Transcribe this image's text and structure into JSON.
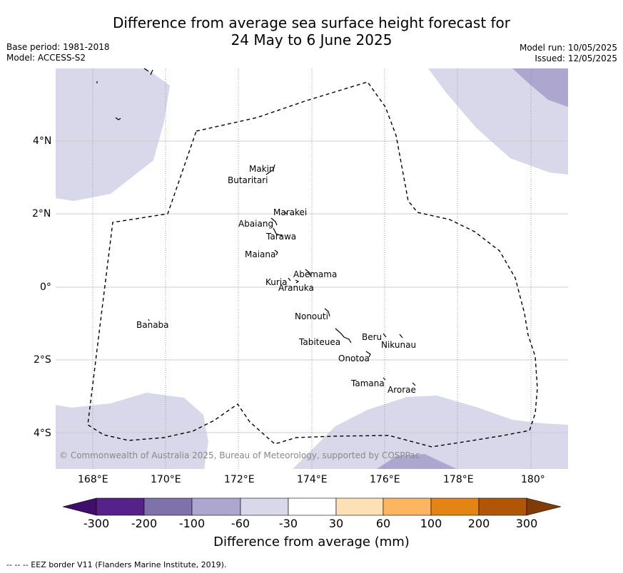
{
  "title_line1": "Difference from average sea surface height forecast for",
  "title_line2": "24 May to 6 June 2025",
  "meta_left": {
    "base_period": "Base period: 1981-2018",
    "model": "Model: ACCESS-S2"
  },
  "meta_right": {
    "model_run": "Model run: 10/05/2025",
    "issued": "Issued: 12/05/2025"
  },
  "x_ticks": [
    "168°E",
    "170°E",
    "172°E",
    "174°E",
    "176°E",
    "178°E",
    "180°"
  ],
  "y_ticks": [
    "4°N",
    "2°N",
    "0°",
    "2°S",
    "4°S"
  ],
  "islands": [
    "Makin",
    "Butaritari",
    "Marakei",
    "Abaiang",
    "Tarawa",
    "Maiana",
    "Abemama",
    "Kuria",
    "Aranuka",
    "Banaba",
    "Nonouti",
    "Beru",
    "Nikunau",
    "Tabiteuea",
    "Onotoa",
    "Tamana",
    "Arorae"
  ],
  "copyright": "© Commonwealth of Australia 2025, Bureau of Meteorology, supported by COSPPac",
  "colorbar": {
    "title": "Difference from average (mm)",
    "ticks": [
      "-300",
      "-200",
      "-100",
      "-60",
      "-30",
      "30",
      "60",
      "100",
      "200",
      "300"
    ],
    "colors": [
      "#3f0f6b",
      "#55218a",
      "#7f72aa",
      "#ada7d0",
      "#d8d8ea",
      "#ffffff",
      "#fee0b6",
      "#fdb55f",
      "#e48414",
      "#b05606",
      "#7f3b08"
    ]
  },
  "footnote": "--  --  -- EEZ border V11 (Flanders Marine Institute, 2019)."
}
